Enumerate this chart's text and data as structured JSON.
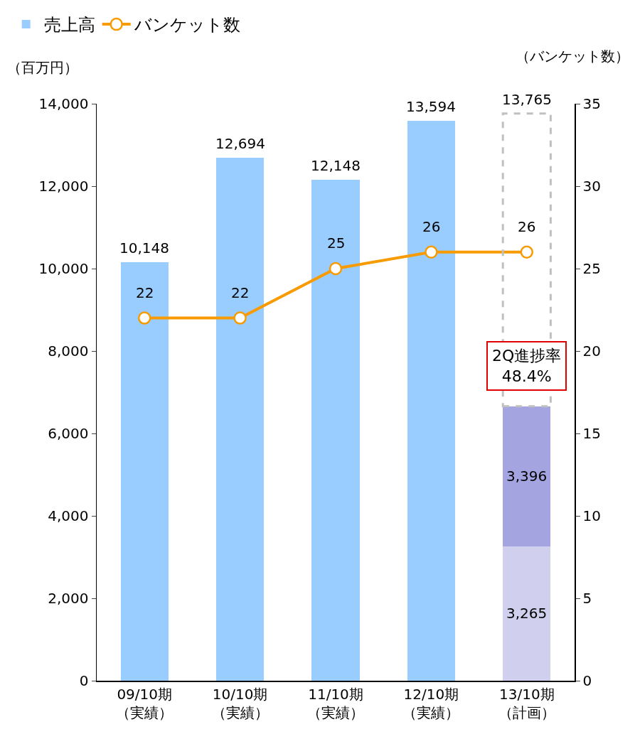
{
  "chart_data": {
    "type": "bar",
    "stacked": true,
    "categories": [
      "09/10期（実績）",
      "10/10期（実績）",
      "11/10期（実績）",
      "12/10期（実績）",
      "13/10期（計画）"
    ],
    "ylabel": "（百万円）",
    "y2label": "（バンケット数）",
    "ylim": [
      0,
      14000
    ],
    "yticks": [
      {
        "value": 0,
        "label": "0"
      },
      {
        "value": 2000,
        "label": "2,000"
      },
      {
        "value": 4000,
        "label": "4,000"
      },
      {
        "value": 6000,
        "label": "6,000"
      },
      {
        "value": 8000,
        "label": "8,000"
      },
      {
        "value": 10000,
        "label": "10,000"
      },
      {
        "value": 12000,
        "label": "12,000"
      },
      {
        "value": 14000,
        "label": "14,000"
      }
    ],
    "y2lim": [
      0,
      35
    ],
    "y2ticks": [
      0,
      5,
      10,
      15,
      20,
      25,
      30,
      35
    ],
    "series": [
      {
        "name": "売上高",
        "color": "#99ccff",
        "values": [
          10148,
          12694,
          12148,
          13594,
          null
        ],
        "value_labels": [
          "10,148",
          "12,694",
          "12,148",
          "13,594",
          null
        ]
      },
      {
        "color": "#d0d0ee",
        "values": [
          null,
          null,
          null,
          null,
          3265
        ],
        "value_labels": [
          null,
          null,
          null,
          null,
          "3,265"
        ]
      },
      {
        "color": "#a4a4e0",
        "values": [
          null,
          null,
          null,
          null,
          3396
        ],
        "value_labels": [
          null,
          null,
          null,
          null,
          "3,396"
        ]
      },
      {
        "color": "#c0c0c0",
        "line_style": "dashed",
        "values": [
          null,
          null,
          null,
          null,
          7104
        ]
      },
      {
        "name": "バンケット数",
        "type": "line",
        "axis": "y2",
        "color": "#f79b00",
        "marker": "circle",
        "values": [
          22,
          22,
          25,
          26,
          26
        ],
        "value_labels": [
          "22",
          "22",
          "25",
          "26",
          "26"
        ]
      }
    ],
    "totals": [
      null,
      null,
      null,
      null,
      "13,765"
    ],
    "annotations": [
      "2Q進捗率\n48.4%"
    ],
    "legend": "top left",
    "grid": false
  }
}
